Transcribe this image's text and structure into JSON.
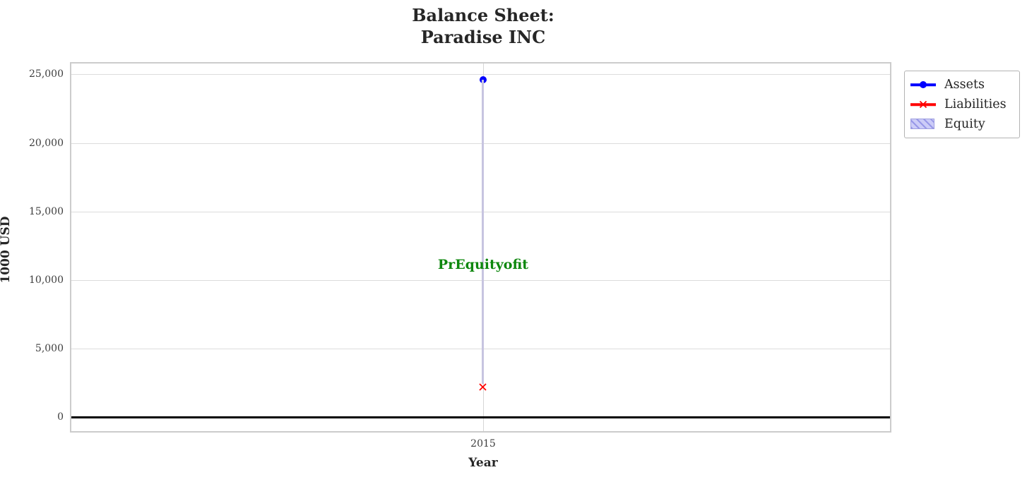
{
  "title": {
    "line1": "Balance Sheet:",
    "line2": "Paradise INC",
    "color": "#262626"
  },
  "chart_data": {
    "type": "scatter",
    "title": "Balance Sheet: Paradise INC",
    "xlabel": "Year",
    "ylabel": "1000 USD",
    "x": [
      2015
    ],
    "xtick_labels": [
      "2015"
    ],
    "series": [
      {
        "name": "Assets",
        "marker": "circle",
        "color": "#0000ff",
        "values": [
          24600
        ]
      },
      {
        "name": "Liabilities",
        "marker": "x",
        "color": "#ff0000",
        "values": [
          2400
        ]
      },
      {
        "name": "Equity",
        "marker": "hatched-band",
        "color": "#c7c4e0",
        "fill": "#ccccf7",
        "band": [
          [
            2400,
            24600
          ]
        ]
      }
    ],
    "annotation": {
      "text": "PrEquityofit",
      "x": 2015,
      "y": 11100,
      "color": "#0d870d"
    },
    "ylim": [
      -1130,
      25900
    ],
    "yticks": [
      0,
      5000,
      10000,
      15000,
      20000,
      25000
    ],
    "ytick_labels": [
      "0",
      "5,000",
      "10,000",
      "15,000",
      "20,000",
      "25,000"
    ],
    "grid": true,
    "zero_line": {
      "color": "#000000"
    },
    "legend": {
      "position": "outside-top-right",
      "entries": [
        "Assets",
        "Liabilities",
        "Equity"
      ]
    }
  }
}
